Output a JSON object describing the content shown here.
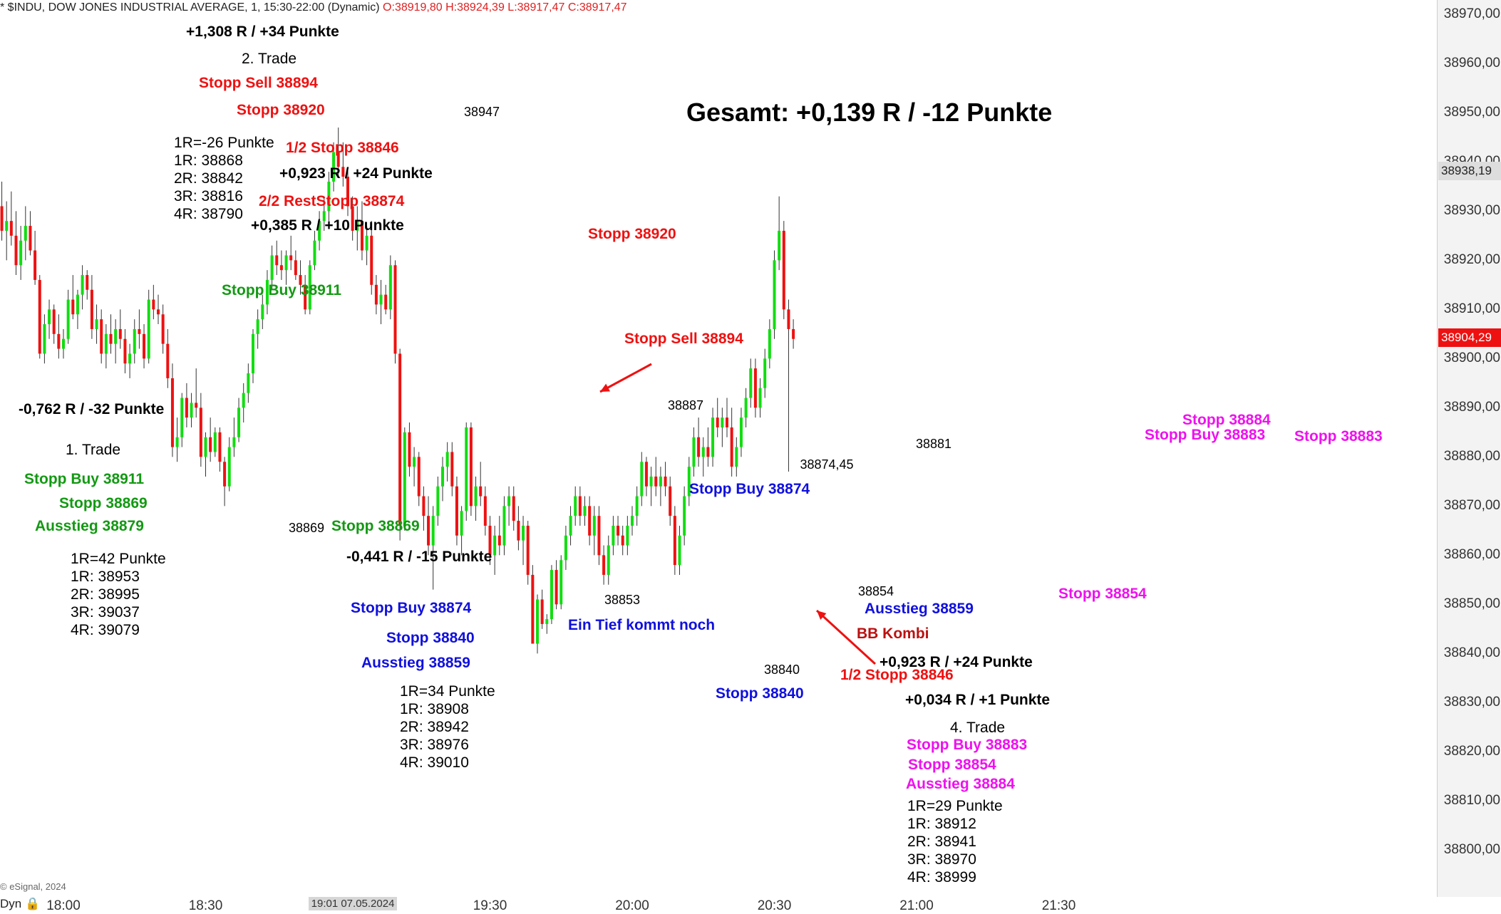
{
  "header": {
    "symbol": "* $INDU, DOW JONES INDUSTRIAL AVERAGE, 1, 15:30-22:00 (Dynamic)",
    "ohlc": "O:38919,80 H:38924,39 L:38917,47 C:38917,47"
  },
  "footer": {
    "copyright": "© eSignal, 2024",
    "dyn": "Dyn 🔒"
  },
  "colors": {
    "up": "#11dd11",
    "down": "#ee1111",
    "last_badge": "#ee1111",
    "prev_badge": "#dddddd"
  },
  "chart_data": {
    "type": "candlestick",
    "title": "",
    "y_ticks": [
      "38970,00",
      "38960,00",
      "38950,00",
      "38940,00",
      "38930,00",
      "38920,00",
      "38910,00",
      "38900,00",
      "38890,00",
      "38880,00",
      "38870,00",
      "38860,00",
      "38850,00",
      "38840,00",
      "38830,00",
      "38820,00",
      "38810,00",
      "38800,00"
    ],
    "y_tick_values": [
      38970,
      38960,
      38950,
      38940,
      38930,
      38920,
      38910,
      38900,
      38890,
      38880,
      38870,
      38860,
      38850,
      38840,
      38830,
      38820,
      38810,
      38800
    ],
    "ylim": [
      38795.3,
      38971.5
    ],
    "x_ticks": [
      "18:00",
      "18:30",
      "19:30",
      "20:00",
      "20:30",
      "21:00",
      "21:30"
    ],
    "x_tick_minutes": [
      0,
      30,
      90,
      120,
      150,
      180,
      210
    ],
    "x_date_label": "19:01 07.05.2024",
    "x_date_minute": 61,
    "x_start_minute": -14,
    "x_minute_per_bar": 1,
    "price_badges": [
      {
        "label": "38938,19",
        "value": 38938.19,
        "kind": "prev"
      },
      {
        "label": "38904,29",
        "value": 38904.29,
        "kind": "last"
      }
    ],
    "bars": [
      [
        38935,
        38937,
        38929,
        38931
      ],
      [
        38931,
        38936,
        38924,
        38926
      ],
      [
        38926,
        38932,
        38920,
        38928
      ],
      [
        38928,
        38934,
        38923,
        38925
      ],
      [
        38925,
        38930,
        38917,
        38919
      ],
      [
        38919,
        38927,
        38916,
        38924
      ],
      [
        38924,
        38931,
        38920,
        38927
      ],
      [
        38927,
        38930,
        38921,
        38922
      ],
      [
        38922,
        38926,
        38915,
        38916
      ],
      [
        38916,
        38917,
        38900,
        38901
      ],
      [
        38901,
        38909,
        38899,
        38907
      ],
      [
        38907,
        38912,
        38904,
        38910
      ],
      [
        38910,
        38911,
        38903,
        38905
      ],
      [
        38905,
        38909,
        38900,
        38902
      ],
      [
        38902,
        38906,
        38900,
        38904
      ],
      [
        38904,
        38914,
        38903,
        38912
      ],
      [
        38912,
        38917,
        38908,
        38909
      ],
      [
        38909,
        38914,
        38906,
        38913
      ],
      [
        38913,
        38919,
        38910,
        38917
      ],
      [
        38917,
        38918,
        38912,
        38914
      ],
      [
        38914,
        38917,
        38904,
        38906
      ],
      [
        38906,
        38911,
        38903,
        38908
      ],
      [
        38908,
        38910,
        38899,
        38901
      ],
      [
        38901,
        38907,
        38898,
        38905
      ],
      [
        38905,
        38909,
        38901,
        38903
      ],
      [
        38903,
        38908,
        38899,
        38906
      ],
      [
        38906,
        38910,
        38902,
        38904
      ],
      [
        38904,
        38906,
        38897,
        38899
      ],
      [
        38899,
        38903,
        38896,
        38901
      ],
      [
        38901,
        38908,
        38899,
        38906
      ],
      [
        38906,
        38910,
        38902,
        38905
      ],
      [
        38905,
        38907,
        38898,
        38900
      ],
      [
        38900,
        38914,
        38899,
        38912
      ],
      [
        38912,
        38915,
        38908,
        38910
      ],
      [
        38910,
        38913,
        38907,
        38909
      ],
      [
        38909,
        38911,
        38901,
        38903
      ],
      [
        38903,
        38906,
        38894,
        38896
      ],
      [
        38896,
        38899,
        38880,
        38882
      ],
      [
        38882,
        38888,
        38879,
        38884
      ],
      [
        38884,
        38893,
        38882,
        38892
      ],
      [
        38892,
        38895,
        38886,
        38888
      ],
      [
        38888,
        38893,
        38886,
        38891
      ],
      [
        38891,
        38898,
        38888,
        38890
      ],
      [
        38890,
        38893,
        38878,
        38880
      ],
      [
        38880,
        38885,
        38876,
        38884
      ],
      [
        38884,
        38888,
        38879,
        38881
      ],
      [
        38881,
        38886,
        38880,
        38885
      ],
      [
        38885,
        38886,
        38877,
        38879
      ],
      [
        38879,
        38880,
        38870,
        38874
      ],
      [
        38874,
        38884,
        38873,
        38882
      ],
      [
        38882,
        38888,
        38880,
        38884
      ],
      [
        38884,
        38892,
        38883,
        38890
      ],
      [
        38890,
        38895,
        38887,
        38893
      ],
      [
        38893,
        38899,
        38891,
        38897
      ],
      [
        38897,
        38906,
        38895,
        38905
      ],
      [
        38905,
        38910,
        38902,
        38908
      ],
      [
        38908,
        38913,
        38906,
        38911
      ],
      [
        38911,
        38918,
        38909,
        38916
      ],
      [
        38916,
        38923,
        38914,
        38921
      ],
      [
        38921,
        38924,
        38917,
        38919
      ],
      [
        38919,
        38922,
        38916,
        38918
      ],
      [
        38918,
        38922,
        38915,
        38921
      ],
      [
        38921,
        38925,
        38918,
        38920
      ],
      [
        38920,
        38922,
        38916,
        38917
      ],
      [
        38917,
        38920,
        38913,
        38915
      ],
      [
        38915,
        38917,
        38909,
        38910
      ],
      [
        38910,
        38920,
        38909,
        38919
      ],
      [
        38919,
        38926,
        38918,
        38924
      ],
      [
        38924,
        38930,
        38922,
        38928
      ],
      [
        38928,
        38933,
        38926,
        38930
      ],
      [
        38930,
        38938,
        38928,
        38936
      ],
      [
        38936,
        38944,
        38934,
        38942
      ],
      [
        38942,
        38947,
        38937,
        38939
      ],
      [
        38939,
        38944,
        38935,
        38937
      ],
      [
        38937,
        38939,
        38929,
        38931
      ],
      [
        38931,
        38933,
        38924,
        38926
      ],
      [
        38926,
        38931,
        38922,
        38928
      ],
      [
        38928,
        38932,
        38920,
        38922
      ],
      [
        38922,
        38927,
        38919,
        38925
      ],
      [
        38925,
        38928,
        38913,
        38915
      ],
      [
        38915,
        38917,
        38909,
        38911
      ],
      [
        38911,
        38916,
        38907,
        38913
      ],
      [
        38913,
        38915,
        38909,
        38910
      ],
      [
        38910,
        38921,
        38908,
        38919
      ],
      [
        38919,
        38920,
        38899,
        38901
      ],
      [
        38901,
        38902,
        38863,
        38866
      ],
      [
        38866,
        38886,
        38865,
        38885
      ],
      [
        38885,
        38887,
        38876,
        38878
      ],
      [
        38878,
        38882,
        38874,
        38880
      ],
      [
        38880,
        38881,
        38870,
        38872
      ],
      [
        38872,
        38874,
        38865,
        38868
      ],
      [
        38868,
        38872,
        38860,
        38862
      ],
      [
        38862,
        38870,
        38853,
        38868
      ],
      [
        38868,
        38876,
        38866,
        38874
      ],
      [
        38874,
        38880,
        38871,
        38878
      ],
      [
        38878,
        38883,
        38875,
        38881
      ],
      [
        38881,
        38883,
        38872,
        38874
      ],
      [
        38874,
        38876,
        38862,
        38864
      ],
      [
        38864,
        38870,
        38860,
        38869
      ],
      [
        38869,
        38887,
        38867,
        38886
      ],
      [
        38886,
        38887,
        38868,
        38870
      ],
      [
        38870,
        38876,
        38867,
        38874
      ],
      [
        38874,
        38879,
        38870,
        38872
      ],
      [
        38872,
        38874,
        38864,
        38866
      ],
      [
        38866,
        38868,
        38858,
        38860
      ],
      [
        38860,
        38866,
        38856,
        38864
      ],
      [
        38864,
        38868,
        38860,
        38862
      ],
      [
        38862,
        38872,
        38860,
        38870
      ],
      [
        38870,
        38874,
        38866,
        38872
      ],
      [
        38872,
        38874,
        38865,
        38867
      ],
      [
        38867,
        38870,
        38861,
        38863
      ],
      [
        38863,
        38868,
        38858,
        38866
      ],
      [
        38866,
        38867,
        38854,
        38856
      ],
      [
        38856,
        38858,
        38844,
        38842
      ],
      [
        38842,
        38852,
        38840,
        38851
      ],
      [
        38851,
        38853,
        38845,
        38846
      ],
      [
        38846,
        38848,
        38844,
        38847
      ],
      [
        38847,
        38858,
        38846,
        38857
      ],
      [
        38857,
        38859,
        38849,
        38850
      ],
      [
        38850,
        38860,
        38849,
        38859
      ],
      [
        38859,
        38866,
        38857,
        38864
      ],
      [
        38864,
        38870,
        38862,
        38868
      ],
      [
        38868,
        38874,
        38866,
        38872
      ],
      [
        38872,
        38874,
        38866,
        38868
      ],
      [
        38868,
        38872,
        38866,
        38870
      ],
      [
        38870,
        38872,
        38862,
        38864
      ],
      [
        38864,
        38870,
        38860,
        38868
      ],
      [
        38868,
        38870,
        38858,
        38860
      ],
      [
        38860,
        38862,
        38854,
        38856
      ],
      [
        38856,
        38864,
        38854,
        38862
      ],
      [
        38862,
        38868,
        38860,
        38866
      ],
      [
        38866,
        38868,
        38862,
        38864
      ],
      [
        38864,
        38866,
        38860,
        38862
      ],
      [
        38862,
        38868,
        38860,
        38866
      ],
      [
        38866,
        38870,
        38864,
        38868
      ],
      [
        38868,
        38874,
        38866,
        38872
      ],
      [
        38872,
        38881,
        38870,
        38879
      ],
      [
        38879,
        38880,
        38872,
        38874
      ],
      [
        38874,
        38878,
        38870,
        38876
      ],
      [
        38876,
        38880,
        38872,
        38874
      ],
      [
        38874,
        38878,
        38870,
        38876
      ],
      [
        38876,
        38879,
        38872,
        38874
      ],
      [
        38874,
        38876,
        38866,
        38868
      ],
      [
        38868,
        38870,
        38856,
        38858
      ],
      [
        38858,
        38866,
        38856,
        38864
      ],
      [
        38864,
        38874,
        38862,
        38872
      ],
      [
        38872,
        38880,
        38870,
        38878
      ],
      [
        38878,
        38886,
        38876,
        38884
      ],
      [
        38884,
        38888,
        38878,
        38880
      ],
      [
        38880,
        38884,
        38876,
        38882
      ],
      [
        38882,
        38886,
        38878,
        38880
      ],
      [
        38880,
        38890,
        38878,
        38888
      ],
      [
        38888,
        38892,
        38884,
        38886
      ],
      [
        38886,
        38890,
        38882,
        38888
      ],
      [
        38888,
        38892,
        38884,
        38886
      ],
      [
        38886,
        38890,
        38876,
        38878
      ],
      [
        38878,
        38884,
        38876,
        38882
      ],
      [
        38882,
        38890,
        38880,
        38888
      ],
      [
        38888,
        38894,
        38886,
        38892
      ],
      [
        38892,
        38900,
        38890,
        38898
      ],
      [
        38898,
        38900,
        38888,
        38890
      ],
      [
        38890,
        38896,
        38888,
        38894
      ],
      [
        38894,
        38902,
        38892,
        38900
      ],
      [
        38900,
        38908,
        38898,
        38906
      ],
      [
        38906,
        38922,
        38904,
        38920
      ],
      [
        38920,
        38933,
        38918,
        38926
      ],
      [
        38926,
        38928,
        38908,
        38910
      ],
      [
        38910,
        38912,
        38877,
        38906
      ],
      [
        38906,
        38908,
        38902,
        38904
      ]
    ]
  },
  "labels": {
    "total": "Gesamt: +0,139 R / -12 Punkte",
    "t2_result": "+1,308 R / +34 Punkte",
    "t2_title": "2. Trade",
    "t2_stopp_sell": "Stopp Sell 38894",
    "t2_stopp": "Stopp 38920",
    "t2_r_1": "1R=-26 Punkte",
    "t2_r_2": "1R: 38868",
    "t2_r_3": "2R: 38842",
    "t2_r_4": "3R: 38816",
    "t2_r_5": "4R: 38790",
    "t2_half": "1/2 Stopp 38846",
    "t2_half_res": "+0,923 R / +24 Punkte",
    "t2_rest": "2/2 RestStopp 38874",
    "t2_rest_res": "+0,385 R / +10 Punkte",
    "t1_stopp_buy_chart": "Stopp Buy 38911",
    "t1_result": "-0,762 R / -32 Punkte",
    "t1_title": "1. Trade",
    "t1_stopp_buy": "Stopp Buy 38911",
    "t1_stopp": "Stopp 38869",
    "t1_exit": "Ausstieg 38879",
    "t1_r_1": "1R=42 Punkte",
    "t1_r_2": "1R: 38953",
    "t1_r_3": "2R: 38995",
    "t1_r_4": "3R: 39037",
    "t1_r_5": "4R: 39079",
    "t1_stopp_chart": "Stopp 38869",
    "t3_result": "-0,441 R / -15 Punkte",
    "t3_stopp_buy": "Stopp Buy 38874",
    "t3_stopp": "Stopp 38840",
    "t3_exit": "Ausstieg 38859",
    "t3_r_1": "1R=34 Punkte",
    "t3_r_2": "1R: 38908",
    "t3_r_3": "2R: 38942",
    "t3_r_4": "3R: 38976",
    "t3_r_5": "4R: 39010",
    "mid_stopp": "Stopp 38920",
    "mid_stopp_sell": "Stopp Sell 38894",
    "ein_tief": "Ein Tief kommt noch",
    "blue_stopp_buy_chart": "Stopp Buy 38874",
    "blue_exit_chart": "Ausstieg 38859",
    "blue_stopp_chart": "Stopp 38840",
    "bb_kombi": "BB Kombi",
    "half_stopp_2": "1/2 Stopp 38846",
    "half_res_2": "+0,923 R / +24 Punkte",
    "t4_small_res": "+0,034 R / +1 Punkte",
    "t4_title": "4. Trade",
    "t4_stopp_buy": "Stopp Buy 38883",
    "t4_stopp": "Stopp 38854",
    "t4_exit": "Ausstieg 38884",
    "t4_r_1": "1R=29 Punkte",
    "t4_r_2": "1R: 38912",
    "t4_r_3": "2R: 38941",
    "t4_r_4": "3R: 38970",
    "t4_r_5": "4R: 38999",
    "m_stopp_chart": "Stopp 38854",
    "m_stopp_38884": "Stopp 38884",
    "m_stopp_buy": "Stopp Buy 38883",
    "m_stopp_38883": "Stopp 38883",
    "p_38947": "38947",
    "p_38869": "38869",
    "p_38887": "38887",
    "p_38853": "38853",
    "p_38874": "38874,45",
    "p_38881": "38881",
    "p_38854": "38854",
    "p_38840": "38840"
  }
}
